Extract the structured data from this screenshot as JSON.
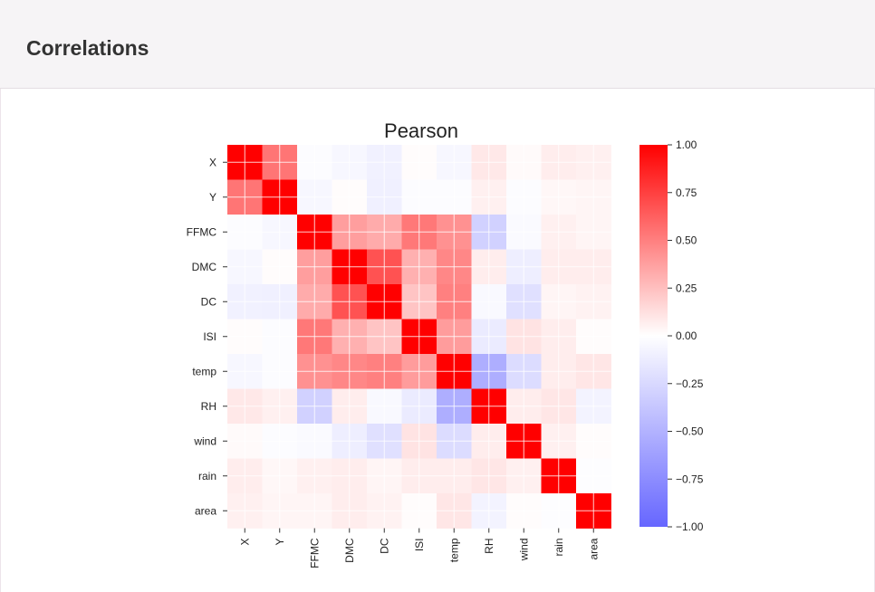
{
  "page": {
    "title": "Correlations"
  },
  "chart_data": {
    "type": "heatmap",
    "title": "Pearson",
    "variables": [
      "X",
      "Y",
      "FFMC",
      "DMC",
      "DC",
      "ISI",
      "temp",
      "RH",
      "wind",
      "rain",
      "area"
    ],
    "matrix": [
      [
        1.0,
        0.54,
        -0.02,
        -0.05,
        -0.09,
        0.01,
        -0.05,
        0.09,
        0.02,
        0.07,
        0.06
      ],
      [
        0.54,
        1.0,
        -0.05,
        0.01,
        -0.1,
        -0.02,
        -0.02,
        0.06,
        -0.02,
        0.03,
        0.04
      ],
      [
        -0.02,
        -0.05,
        1.0,
        0.38,
        0.33,
        0.53,
        0.43,
        -0.3,
        -0.03,
        0.06,
        0.04
      ],
      [
        -0.05,
        0.01,
        0.38,
        1.0,
        0.68,
        0.31,
        0.47,
        0.07,
        -0.11,
        0.07,
        0.07
      ],
      [
        -0.09,
        -0.1,
        0.33,
        0.68,
        1.0,
        0.23,
        0.5,
        -0.04,
        -0.2,
        0.04,
        0.05
      ],
      [
        0.01,
        -0.02,
        0.53,
        0.31,
        0.23,
        1.0,
        0.39,
        -0.13,
        0.11,
        0.07,
        0.01
      ],
      [
        -0.05,
        -0.02,
        0.43,
        0.47,
        0.5,
        0.39,
        1.0,
        -0.53,
        -0.23,
        0.07,
        0.1
      ],
      [
        0.09,
        0.06,
        -0.3,
        0.07,
        -0.04,
        -0.13,
        -0.53,
        1.0,
        0.07,
        0.1,
        -0.08
      ],
      [
        0.02,
        -0.02,
        -0.03,
        -0.11,
        -0.2,
        0.11,
        -0.23,
        0.07,
        1.0,
        0.06,
        0.01
      ],
      [
        0.07,
        0.03,
        0.06,
        0.07,
        0.04,
        0.07,
        0.07,
        0.1,
        0.06,
        1.0,
        -0.01
      ],
      [
        0.06,
        0.04,
        0.04,
        0.07,
        0.05,
        0.01,
        0.1,
        -0.08,
        0.01,
        -0.01,
        1.0
      ]
    ],
    "colorbar": {
      "range": [
        -1.0,
        1.0
      ],
      "ticks": [
        "1.00",
        "0.75",
        "0.50",
        "0.25",
        "0.00",
        "−0.25",
        "−0.50",
        "−0.75",
        "−1.00"
      ],
      "tick_values": [
        1.0,
        0.75,
        0.5,
        0.25,
        0.0,
        -0.25,
        -0.5,
        -0.75,
        -1.0
      ],
      "colors": {
        "positive": "#ff0000",
        "zero": "#ffffff",
        "negative": "#6666ff"
      }
    }
  }
}
